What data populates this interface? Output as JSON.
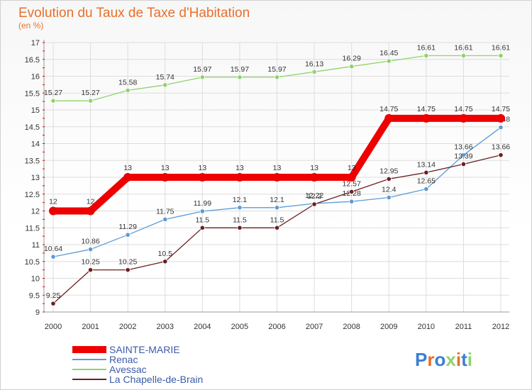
{
  "chart_data": {
    "type": "line",
    "title": "Evolution du Taux de Taxe d'Habitation",
    "subtitle": "(en %)",
    "x": [
      "2000",
      "2001",
      "2002",
      "2003",
      "2004",
      "2005",
      "2006",
      "2007",
      "2008",
      "2009",
      "2010",
      "2011",
      "2012"
    ],
    "ylim": [
      9,
      17
    ],
    "yticks": [
      "9",
      "9.5",
      "10",
      "10.5",
      "11",
      "11.5",
      "12",
      "12.5",
      "13",
      "13.5",
      "14",
      "14.5",
      "15",
      "15.5",
      "16",
      "16.5",
      "17"
    ],
    "grid": true,
    "legend_position": "bottom-left",
    "series": [
      {
        "name": "SAINTE-MARIE",
        "color": "#ee0000",
        "values": [
          12,
          12,
          13,
          13,
          13,
          13,
          13,
          13,
          13,
          14.75,
          14.75,
          14.75,
          14.75
        ],
        "labels": [
          "12",
          "12",
          "13",
          "13",
          "13",
          "13",
          "13",
          "13",
          "13",
          "14.75",
          "14.75",
          "14.75",
          "14.75"
        ]
      },
      {
        "name": "Renac",
        "color": "#5b9bd5",
        "values": [
          10.64,
          10.86,
          11.29,
          11.75,
          11.99,
          12.1,
          12.1,
          12.22,
          12.28,
          12.4,
          12.65,
          13.66,
          14.48
        ],
        "labels": [
          "10.64",
          "10.86",
          "11.29",
          "11.75",
          "11.99",
          "12.1",
          "12.1",
          "12.22",
          "12.28",
          "12.4",
          "12.65",
          "13.66",
          "14.48"
        ]
      },
      {
        "name": "Avessac",
        "color": "#8fd46a",
        "values": [
          15.27,
          15.27,
          15.58,
          15.74,
          15.97,
          15.97,
          15.97,
          16.13,
          16.29,
          16.45,
          16.61,
          16.61,
          16.61
        ],
        "labels": [
          "15.27",
          "15.27",
          "15.58",
          "15.74",
          "15.97",
          "15.97",
          "15.97",
          "16.13",
          "16.29",
          "16.45",
          "16.61",
          "16.61",
          "16.61"
        ]
      },
      {
        "name": "La Chapelle-de-Brain",
        "color": "#6b1f1f",
        "values": [
          9.25,
          10.25,
          10.25,
          10.5,
          11.5,
          11.5,
          11.5,
          12.2,
          12.57,
          12.95,
          13.14,
          13.39,
          13.66
        ],
        "labels": [
          "9.25",
          "10.25",
          "10.25",
          "10.5",
          "11.5",
          "11.5",
          "11.5",
          "12.2",
          "12.57",
          "12.95",
          "13.14",
          "13.39",
          "13.66"
        ]
      }
    ]
  },
  "logo": {
    "text": "Proxiti",
    "colors": [
      "#3a7fd5",
      "#e8702a",
      "#3a7fd5",
      "#8fd46a",
      "#e8702a",
      "#3a7fd5",
      "#8fd46a"
    ]
  }
}
